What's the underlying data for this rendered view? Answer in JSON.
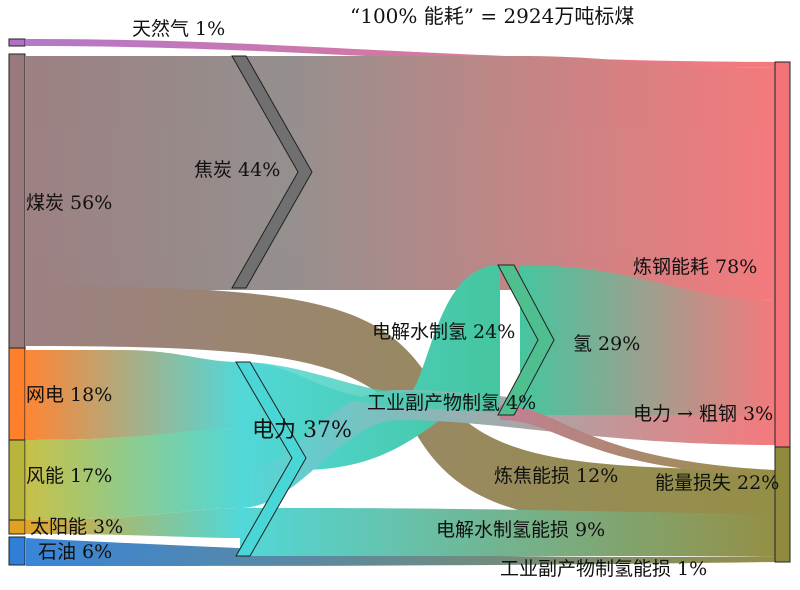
{
  "title": "“100% 能耗” = 2924万吨标煤",
  "colors": {
    "gas": "#b070c8",
    "coal": "#987a7c",
    "coke": "#8c8c8c",
    "grid": "#ff7f2a",
    "wind": "#b9b43a",
    "solar": "#e0a020",
    "oil": "#2f7fd6",
    "electricity": "#49d6d6",
    "electrolysis_h2": "#3cc39a",
    "byproduct_h2": "#7fae95",
    "hydrogen": "#4fbf8f",
    "steel": "#f47376",
    "loss": "#8f8a3c",
    "coking_loss": "#8b8456"
  },
  "nodes": {
    "gas": "天然气 1%",
    "coal": "煤炭 56%",
    "grid": "网电 18%",
    "wind": "风能 17%",
    "solar": "太阳能 3%",
    "oil": "石油 6%",
    "coke": "焦炭 44%",
    "electricity": "电力 37%",
    "electrolysis_h2": "电解水制氢 24%",
    "byproduct_h2": "工业副产物制氢 4%",
    "hydrogen": "氢 29%",
    "steel_energy": "炼钢能耗 78%",
    "elec_to_steel": "电力 → 粗钢 3%",
    "coking_loss": "炼焦能损 12%",
    "loss": "能量损失 22%",
    "electrolysis_loss": "电解水制氢能损 9%",
    "byproduct_loss": "工业副产物制氢能损 1%"
  }
}
